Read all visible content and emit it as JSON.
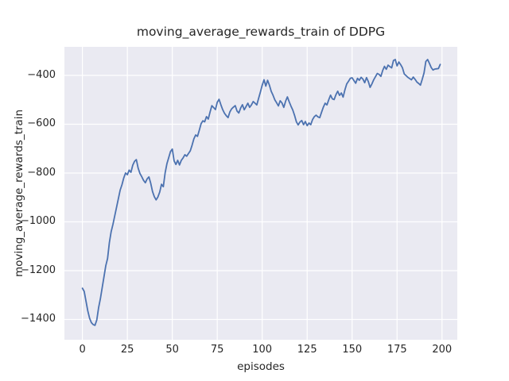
{
  "chart_data": {
    "type": "line",
    "title": "moving_average_rewards_train of DDPG",
    "xlabel": "episodes",
    "ylabel": "moving_average_rewards_train",
    "xlim": [
      -10,
      208.5
    ],
    "ylim": [
      -1483,
      -283
    ],
    "xticks": [
      0,
      25,
      50,
      75,
      100,
      125,
      150,
      175,
      200
    ],
    "xtick_labels": [
      "0",
      "25",
      "50",
      "75",
      "100",
      "125",
      "150",
      "175",
      "200"
    ],
    "yticks": [
      -400,
      -600,
      -800,
      -1000,
      -1200,
      -1400
    ],
    "ytick_labels": [
      "−400",
      "−600",
      "−800",
      "−1000",
      "−1200",
      "−1400"
    ],
    "grid": true,
    "legend_visible": false,
    "style": "seaborn-darkgrid",
    "colors": {
      "line": "#4c72b0",
      "plot_background": "#eaeaf2",
      "grid": "#ffffff",
      "text": "#262626",
      "figure_background": "#ffffff"
    },
    "series": [
      {
        "name": "moving_average_rewards_train",
        "x_start": 0,
        "x_step": 1,
        "values": [
          -1272,
          -1285,
          -1325,
          -1365,
          -1395,
          -1413,
          -1421,
          -1424,
          -1402,
          -1352,
          -1315,
          -1270,
          -1225,
          -1180,
          -1150,
          -1085,
          -1040,
          -1010,
          -975,
          -940,
          -905,
          -870,
          -848,
          -820,
          -800,
          -807,
          -788,
          -797,
          -768,
          -752,
          -745,
          -780,
          -802,
          -815,
          -830,
          -840,
          -824,
          -816,
          -842,
          -876,
          -897,
          -910,
          -898,
          -878,
          -846,
          -856,
          -800,
          -762,
          -737,
          -712,
          -702,
          -750,
          -765,
          -748,
          -767,
          -748,
          -738,
          -725,
          -731,
          -720,
          -709,
          -686,
          -660,
          -644,
          -650,
          -625,
          -598,
          -586,
          -590,
          -569,
          -579,
          -550,
          -524,
          -532,
          -540,
          -510,
          -498,
          -520,
          -540,
          -555,
          -565,
          -573,
          -550,
          -537,
          -530,
          -524,
          -546,
          -554,
          -534,
          -520,
          -541,
          -528,
          -514,
          -531,
          -521,
          -507,
          -514,
          -521,
          -494,
          -468,
          -440,
          -418,
          -444,
          -420,
          -440,
          -465,
          -481,
          -500,
          -512,
          -525,
          -504,
          -513,
          -531,
          -506,
          -488,
          -508,
          -526,
          -542,
          -564,
          -590,
          -603,
          -591,
          -585,
          -602,
          -589,
          -606,
          -595,
          -602,
          -581,
          -569,
          -563,
          -570,
          -573,
          -551,
          -530,
          -514,
          -521,
          -500,
          -481,
          -496,
          -499,
          -479,
          -465,
          -482,
          -472,
          -489,
          -459,
          -435,
          -424,
          -412,
          -410,
          -421,
          -432,
          -412,
          -420,
          -408,
          -415,
          -430,
          -409,
          -425,
          -449,
          -435,
          -418,
          -405,
          -392,
          -396,
          -404,
          -380,
          -363,
          -375,
          -358,
          -364,
          -369,
          -339,
          -335,
          -361,
          -345,
          -356,
          -369,
          -394,
          -401,
          -408,
          -413,
          -418,
          -407,
          -416,
          -427,
          -433,
          -440,
          -416,
          -390,
          -343,
          -335,
          -351,
          -368,
          -378,
          -374,
          -373,
          -372,
          -355
        ]
      }
    ]
  }
}
